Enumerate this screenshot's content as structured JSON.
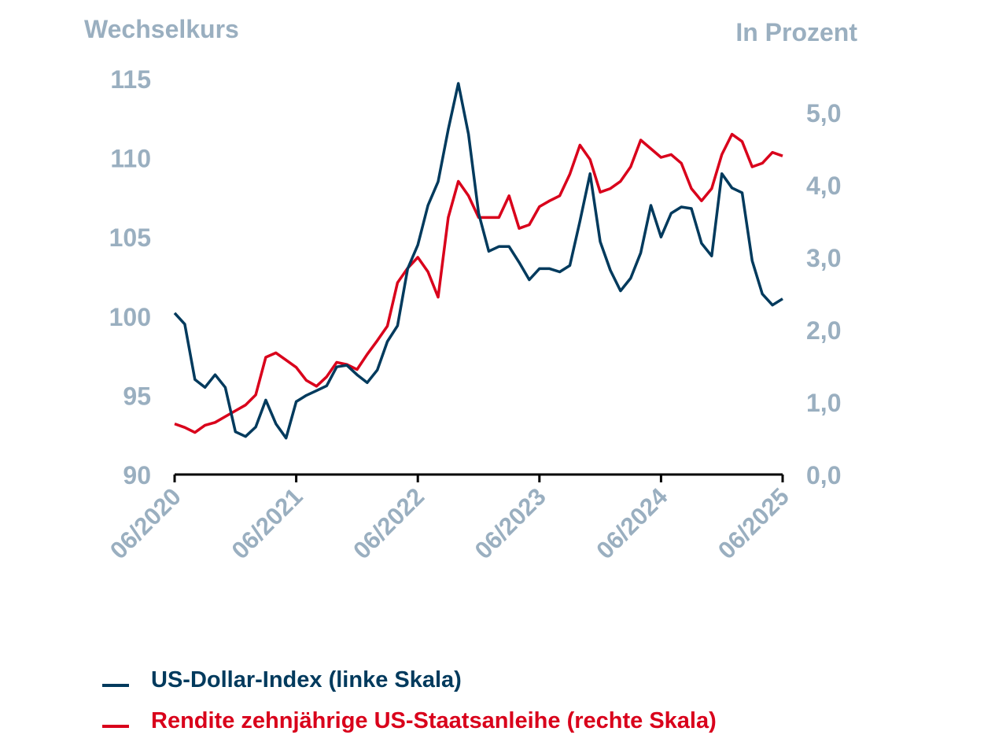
{
  "chart_data": {
    "type": "line",
    "left_axis_title": "Wechselkurs",
    "right_axis_title": "In Prozent",
    "left_ylim": [
      90,
      115
    ],
    "left_ticks": [
      "90",
      "95",
      "100",
      "105",
      "110",
      "115"
    ],
    "right_ylim": [
      0.0,
      5.5
    ],
    "right_ticks": [
      "0,0",
      "1,0",
      "2,0",
      "3,0",
      "4,0",
      "5,0"
    ],
    "x_ticks": [
      "06/2020",
      "06/2021",
      "06/2022",
      "06/2023",
      "06/2024",
      "06/2025"
    ],
    "x_range": [
      "2020-06",
      "2025-06"
    ],
    "grid": false,
    "legend_position": "bottom-left",
    "colors": {
      "usd": "#003a5d",
      "yield": "#d9001b",
      "axis_text": "#9aafc0",
      "axis_line": "#000000"
    },
    "series": [
      {
        "name": "US-Dollar-Index (linke Skala)",
        "axis": "left",
        "x": [
          "2020-06",
          "2020-07",
          "2020-08",
          "2020-09",
          "2020-10",
          "2020-11",
          "2020-12",
          "2021-01",
          "2021-02",
          "2021-03",
          "2021-04",
          "2021-05",
          "2021-06",
          "2021-07",
          "2021-08",
          "2021-09",
          "2021-10",
          "2021-11",
          "2021-12",
          "2022-01",
          "2022-02",
          "2022-03",
          "2022-04",
          "2022-05",
          "2022-06",
          "2022-07",
          "2022-08",
          "2022-09",
          "2022-10",
          "2022-11",
          "2022-12",
          "2023-01",
          "2023-02",
          "2023-03",
          "2023-04",
          "2023-05",
          "2023-06",
          "2023-07",
          "2023-08",
          "2023-09",
          "2023-10",
          "2023-11",
          "2023-12",
          "2024-01",
          "2024-02",
          "2024-03",
          "2024-04",
          "2024-05",
          "2024-06",
          "2024-07",
          "2024-08",
          "2024-09",
          "2024-10",
          "2024-11",
          "2024-12",
          "2025-01",
          "2025-02",
          "2025-03",
          "2025-04",
          "2025-05",
          "2025-06"
        ],
        "values": [
          100.2,
          99.5,
          96.0,
          95.5,
          96.3,
          95.5,
          92.7,
          92.4,
          93.0,
          94.7,
          93.2,
          92.3,
          94.6,
          95.0,
          95.3,
          95.6,
          96.8,
          96.9,
          96.3,
          95.8,
          96.6,
          98.4,
          99.4,
          103.0,
          104.5,
          107.0,
          108.5,
          111.8,
          114.7,
          111.5,
          106.5,
          104.1,
          104.4,
          104.4,
          103.4,
          102.3,
          103.0,
          103.0,
          102.8,
          103.2,
          106.0,
          109.0,
          104.7,
          102.9,
          101.6,
          102.4,
          104.0,
          107.0,
          105.0,
          106.5,
          106.9,
          106.8,
          104.6,
          103.8,
          109.0,
          108.1,
          107.8,
          103.5,
          101.4,
          100.7,
          101.1
        ]
      },
      {
        "name": "Rendite zehnjährige US-Staatsanleihe (rechte Skala)",
        "axis": "right",
        "x": [
          "2020-06",
          "2020-07",
          "2020-08",
          "2020-09",
          "2020-10",
          "2020-11",
          "2020-12",
          "2021-01",
          "2021-02",
          "2021-03",
          "2021-04",
          "2021-05",
          "2021-06",
          "2021-07",
          "2021-08",
          "2021-09",
          "2021-10",
          "2021-11",
          "2021-12",
          "2022-01",
          "2022-02",
          "2022-03",
          "2022-04",
          "2022-05",
          "2022-06",
          "2022-07",
          "2022-08",
          "2022-09",
          "2022-10",
          "2022-11",
          "2022-12",
          "2023-01",
          "2023-02",
          "2023-03",
          "2023-04",
          "2023-05",
          "2023-06",
          "2023-07",
          "2023-08",
          "2023-09",
          "2023-10",
          "2023-11",
          "2023-12",
          "2024-01",
          "2024-02",
          "2024-03",
          "2024-04",
          "2024-05",
          "2024-06",
          "2024-07",
          "2024-08",
          "2024-09",
          "2024-10",
          "2024-11",
          "2024-12",
          "2025-01",
          "2025-02",
          "2025-03",
          "2025-04",
          "2025-05",
          "2025-06"
        ],
        "values": [
          0.7,
          0.65,
          0.58,
          0.68,
          0.72,
          0.8,
          0.88,
          0.96,
          1.1,
          1.62,
          1.68,
          1.58,
          1.48,
          1.3,
          1.22,
          1.35,
          1.55,
          1.52,
          1.45,
          1.66,
          1.85,
          2.05,
          2.65,
          2.85,
          3.0,
          2.8,
          2.45,
          3.55,
          4.05,
          3.85,
          3.55,
          3.55,
          3.55,
          3.85,
          3.4,
          3.45,
          3.7,
          3.78,
          3.85,
          4.15,
          4.55,
          4.35,
          3.9,
          3.95,
          4.05,
          4.25,
          4.62,
          4.5,
          4.38,
          4.42,
          4.3,
          3.95,
          3.78,
          3.95,
          4.42,
          4.7,
          4.6,
          4.25,
          4.3,
          4.45,
          4.4
        ]
      }
    ]
  }
}
